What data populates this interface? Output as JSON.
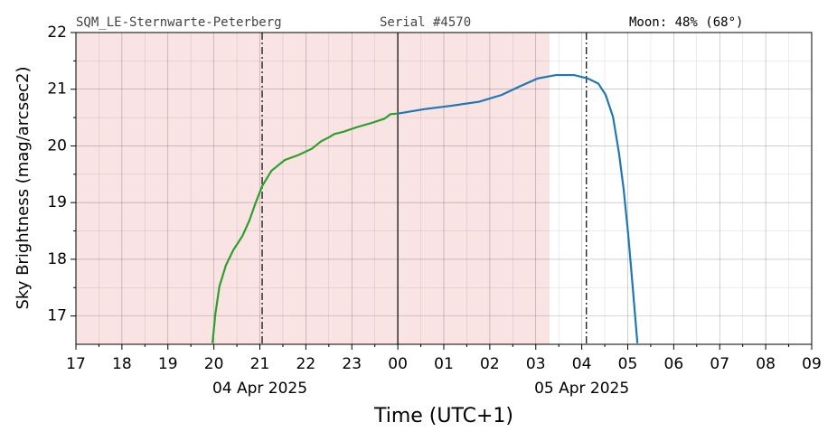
{
  "chart_data": {
    "type": "line",
    "header": [
      "SQM_LE-Sternwarte-Peterberg",
      "Serial #4570",
      "Moon: 48% (68°)"
    ],
    "ylabel": "Sky Brightness (mag/arcsec2)",
    "xlabel": "Time (UTC+1)",
    "xlim": [
      17,
      33
    ],
    "ylim": [
      16.5,
      22
    ],
    "xticks": [
      17,
      18,
      19,
      20,
      21,
      22,
      23,
      {
        "value": 24,
        "label": "00"
      },
      {
        "value": 25,
        "label": "01"
      },
      {
        "value": 26,
        "label": "02"
      },
      {
        "value": 27,
        "label": "03"
      },
      {
        "value": 28,
        "label": "04"
      },
      {
        "value": 29,
        "label": "05"
      },
      {
        "value": 30,
        "label": "06"
      },
      {
        "value": 31,
        "label": "07"
      },
      {
        "value": 32,
        "label": "08"
      },
      {
        "value": 33,
        "label": "09"
      }
    ],
    "xminorticks": [
      17.5,
      18.5,
      19.5,
      20.5,
      21.5,
      22.5,
      23.5,
      24.5,
      25.5,
      26.5,
      27.5,
      28.5,
      29.5,
      30.5,
      31.5,
      32.5
    ],
    "yticks": [
      17,
      18,
      19,
      20,
      21,
      22
    ],
    "yminorticks": [
      17.5,
      18.5,
      19.5,
      20.5,
      21.5
    ],
    "date_labels": [
      {
        "value": 21,
        "label": "04 Apr 2025"
      },
      {
        "value": 28,
        "label": "05 Apr 2025"
      }
    ],
    "grid": true,
    "shaded_region": {
      "range": [
        17,
        27.3
      ],
      "color": "#f9e3e3"
    },
    "vlines": [
      {
        "value": 21.05,
        "style": "dashdot"
      },
      {
        "value": 24,
        "style": "solid"
      },
      {
        "value": 28.1,
        "style": "dashdot"
      }
    ],
    "series": [
      {
        "color": "#2ca02c",
        "x": [
          19.97,
          20.03,
          20.12,
          20.26,
          20.42,
          20.62,
          20.77,
          20.91,
          21.05,
          21.25,
          21.54,
          21.84,
          22.13,
          22.33,
          22.52,
          22.62,
          22.82,
          23.11,
          23.41,
          23.71,
          23.84,
          24.0
        ],
        "values": [
          16.52,
          17.02,
          17.52,
          17.89,
          18.16,
          18.41,
          18.68,
          19.0,
          19.29,
          19.56,
          19.75,
          19.84,
          19.95,
          20.08,
          20.16,
          20.21,
          20.25,
          20.33,
          20.4,
          20.48,
          20.56,
          20.57
        ]
      },
      {
        "color": "#1f77b4",
        "x": [
          24.0,
          24.59,
          25.18,
          25.77,
          26.26,
          26.65,
          27.04,
          27.44,
          27.83,
          28.13,
          28.36,
          28.52,
          28.68,
          28.81,
          28.91,
          29.01,
          29.11,
          29.21
        ],
        "values": [
          20.57,
          20.65,
          20.71,
          20.78,
          20.9,
          21.05,
          21.19,
          21.25,
          21.25,
          21.19,
          21.1,
          20.9,
          20.51,
          19.87,
          19.24,
          18.44,
          17.49,
          16.52
        ]
      }
    ]
  }
}
